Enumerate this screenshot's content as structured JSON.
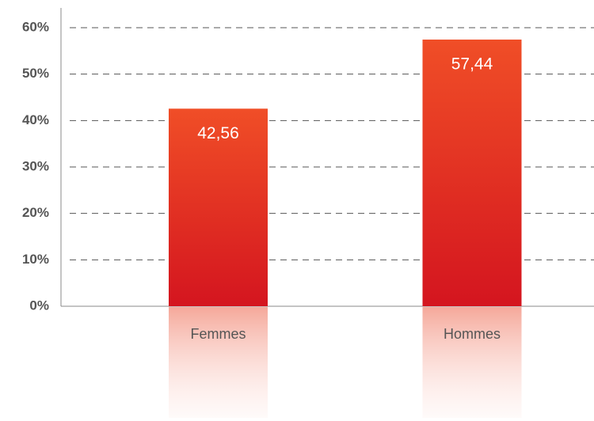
{
  "chart_data": {
    "type": "bar",
    "categories": [
      "Femmes",
      "Hommes"
    ],
    "values": [
      42.56,
      57.44
    ],
    "value_labels": [
      "42,56",
      "57,44"
    ],
    "color": "#e0261f",
    "ylim": [
      0,
      60
    ],
    "yticks": [
      {
        "value": 0,
        "label": "0%"
      },
      {
        "value": 10,
        "label": "10%"
      },
      {
        "value": 20,
        "label": "20%"
      },
      {
        "value": 30,
        "label": "30%"
      },
      {
        "value": 40,
        "label": "40%"
      },
      {
        "value": 50,
        "label": "50%"
      },
      {
        "value": 60,
        "label": "60%"
      }
    ],
    "grid": true
  }
}
